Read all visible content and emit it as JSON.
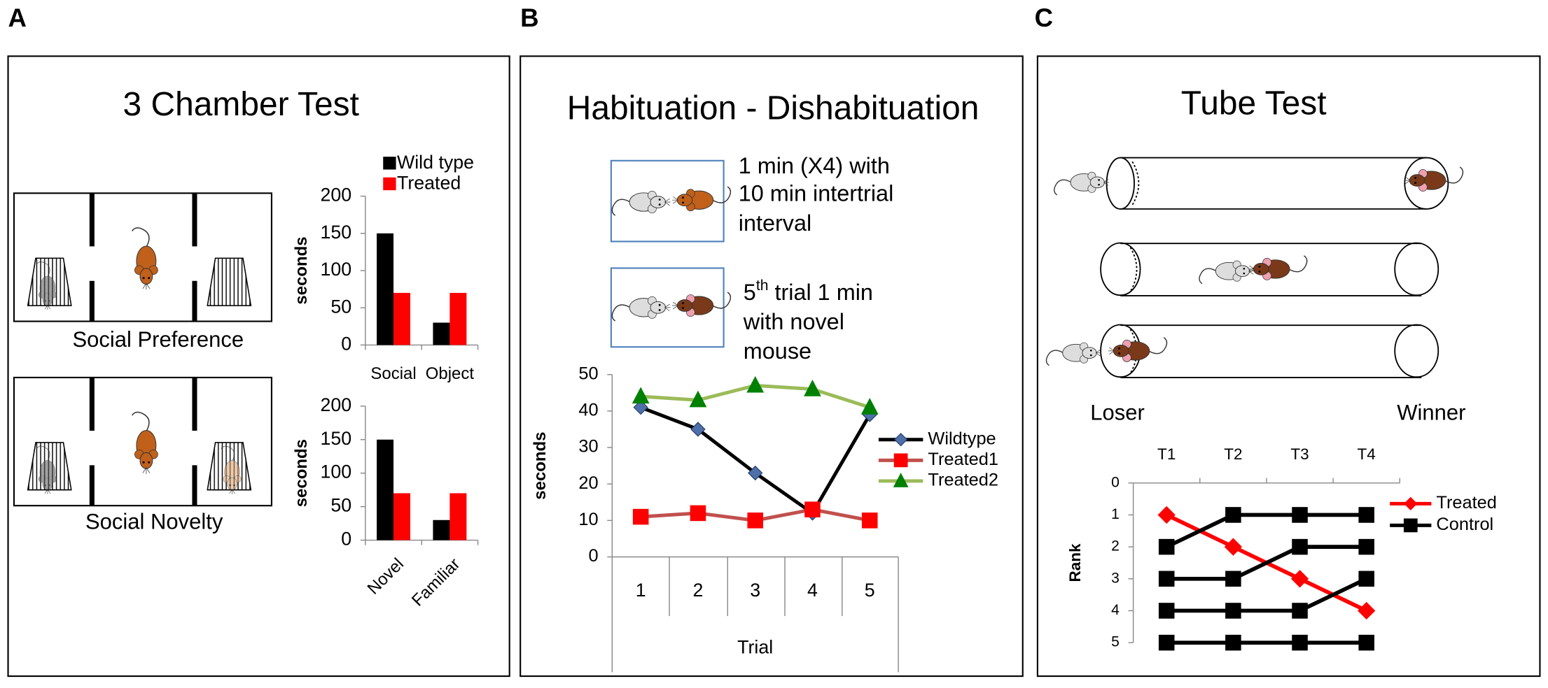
{
  "panels": {
    "letters": [
      "A",
      "B",
      "C"
    ],
    "titles": [
      "3 Chamber Test",
      "Habituation - Dishabituation",
      "Tube Test"
    ]
  },
  "chamber_labels": [
    "Social Preference",
    "Social Novelty"
  ],
  "protocol": {
    "first": [
      "1 min (X4) with",
      "10 min intertrial",
      "interval"
    ],
    "second": {
      "number": "5",
      "superscript": "th",
      "lines": [
        " trial 1 min",
        "with novel",
        "mouse"
      ]
    }
  },
  "tube_labels": [
    "Loser",
    "Winner"
  ],
  "chart_data": [
    {
      "type": "bar",
      "y_label": "seconds",
      "categories": [
        "Social",
        "Object"
      ],
      "series": [
        {
          "name": "Wild type",
          "color": "#000000",
          "values": [
            150,
            30
          ]
        },
        {
          "name": "Treated",
          "color": "#ff0000",
          "values": [
            70,
            70
          ]
        }
      ],
      "ylim": [
        0,
        200
      ],
      "yticks": [
        0,
        50,
        100,
        150,
        200
      ]
    },
    {
      "type": "bar",
      "y_label": "seconds",
      "categories": [
        "Novel",
        "Familiar"
      ],
      "rotate_categories": true,
      "series": [
        {
          "color": "#000000",
          "values": [
            150,
            30
          ]
        },
        {
          "color": "#ff0000",
          "values": [
            70,
            70
          ]
        }
      ],
      "ylim": [
        0,
        200
      ],
      "yticks": [
        0,
        50,
        100,
        150,
        200
      ]
    },
    {
      "type": "line",
      "y_label": "seconds",
      "x_label": "Trial",
      "categories": [
        "1",
        "2",
        "3",
        "4",
        "5"
      ],
      "series": [
        {
          "name": "Wildtype",
          "color": "#000000",
          "marker": "diamond",
          "marker_color": "#4f6fa8",
          "values": [
            41,
            35,
            23,
            12,
            39
          ]
        },
        {
          "name": "Treated1",
          "color": "#c0504d",
          "marker": "square",
          "marker_color": "#ff0000",
          "values": [
            11,
            12,
            10,
            13,
            10
          ]
        },
        {
          "name": "Treated2",
          "color": "#9bbb59",
          "marker": "triangle",
          "marker_color": "#008000",
          "values": [
            44,
            43,
            47,
            46,
            41
          ]
        }
      ],
      "ylim": [
        0,
        50
      ],
      "yticks": [
        0,
        10,
        20,
        30,
        40,
        50
      ]
    },
    {
      "type": "line",
      "y_label": "Rank",
      "categories": [
        "T1",
        "T2",
        "T3",
        "T4"
      ],
      "y_inverted": true,
      "series": [
        {
          "name": "Treated",
          "color": "#ff0000",
          "marker": "diamond",
          "marker_color": "#ff0000",
          "values": [
            1,
            2,
            3,
            4
          ]
        },
        {
          "name": "Control",
          "color": "#000000",
          "marker": "square",
          "marker_color": "#000000",
          "values": [
            2,
            1,
            1,
            1
          ]
        },
        {
          "color": "#000000",
          "marker": "square",
          "marker_color": "#000000",
          "values": [
            3,
            3,
            2,
            2
          ]
        },
        {
          "color": "#000000",
          "marker": "square",
          "marker_color": "#000000",
          "values": [
            4,
            4,
            4,
            3
          ]
        },
        {
          "color": "#000000",
          "marker": "square",
          "marker_color": "#000000",
          "values": [
            5,
            5,
            5,
            5
          ]
        }
      ],
      "ylim": [
        0,
        5
      ],
      "yticks": [
        0,
        1,
        2,
        3,
        4,
        5
      ]
    }
  ]
}
